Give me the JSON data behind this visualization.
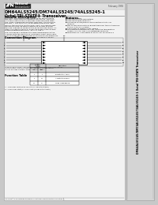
{
  "bg_color": "#c8c8c8",
  "page_color": "#f2f2f2",
  "sidebar_color": "#d4d4d4",
  "logo_bg": "#2a2a2a",
  "title_main": "DM64ALS5245/DM74ALS5245/74ALS5245-1",
  "title_sub": "Octal TRI-STATE® Transceiver",
  "date_text": "February 1992",
  "sec1_title": "General Description",
  "sec2_title": "Features",
  "conn_title": "Connection Diagram",
  "func_title": "Function Table",
  "func_rows": [
    [
      "L",
      "L",
      "B Data to A Bus"
    ],
    [
      "L",
      "H",
      "A Data to B Bus"
    ],
    [
      "H",
      "X",
      "High Impedance"
    ]
  ],
  "side_text": "DM64ALS5245/DM74ALS5245/74ALS5245-1 Octal TRI-STATE Transceiver",
  "order_text": "Order Number DM64ALS5245WM, DM74ALS5245WM, DM74ALS5245AN1,\nDM64ALS5245, DM74ALS5245, 74ALS5245, or 74ALS5245-1a\nSee NS Package Numbers M24B, W28B for details.",
  "bottom_text": "TRI-STATE® is a registered trademark of National Semiconductor Corporation",
  "page_num": "1",
  "note1": "L = LOW logic input (open collector or low output level)",
  "note2": "H = HIGH logic state (or HIGH input I/O high output level)"
}
